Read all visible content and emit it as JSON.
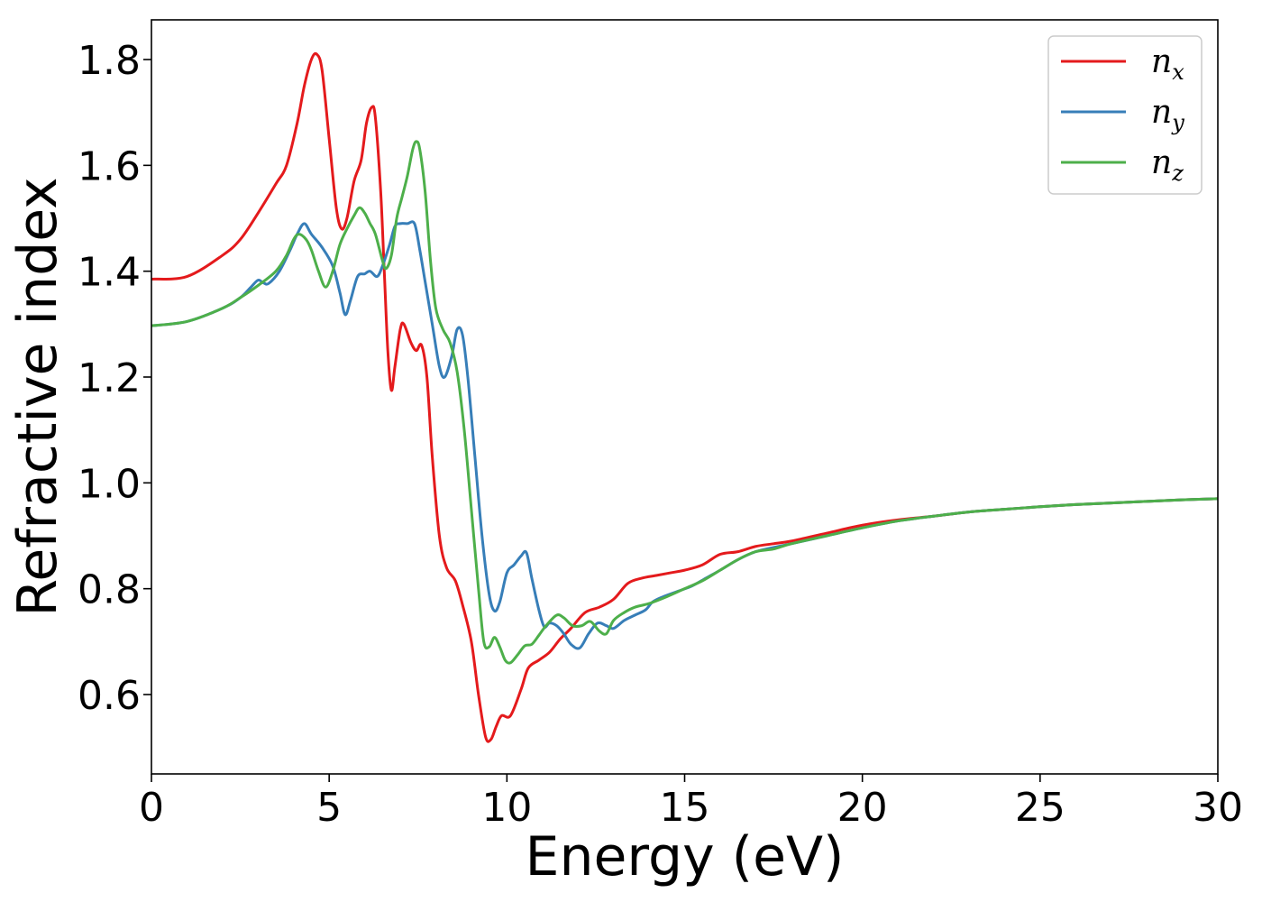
{
  "chart_data": {
    "type": "line",
    "xlabel": "Energy (eV)",
    "ylabel": "Refractive index",
    "xlim": [
      0,
      30
    ],
    "ylim": [
      0.45,
      1.875
    ],
    "xticks": [
      0,
      5,
      10,
      15,
      20,
      25,
      30
    ],
    "yticks": [
      0.6,
      0.8,
      1.0,
      1.2,
      1.4,
      1.6,
      1.8
    ],
    "xtick_labels": [
      "0",
      "5",
      "10",
      "15",
      "20",
      "25",
      "30"
    ],
    "ytick_labels": [
      "0.6",
      "0.8",
      "1.0",
      "1.2",
      "1.4",
      "1.6",
      "1.8"
    ],
    "grid": false,
    "legend_position": "top-right",
    "series": [
      {
        "name": "n",
        "subscript": "x",
        "color": "#e41a1c",
        "points": [
          [
            0,
            1.385
          ],
          [
            1,
            1.39
          ],
          [
            2,
            1.43
          ],
          [
            2.5,
            1.46
          ],
          [
            3,
            1.51
          ],
          [
            3.5,
            1.565
          ],
          [
            3.8,
            1.6
          ],
          [
            4.1,
            1.68
          ],
          [
            4.3,
            1.75
          ],
          [
            4.5,
            1.8
          ],
          [
            4.65,
            1.81
          ],
          [
            4.8,
            1.78
          ],
          [
            5.0,
            1.65
          ],
          [
            5.2,
            1.52
          ],
          [
            5.35,
            1.48
          ],
          [
            5.5,
            1.5
          ],
          [
            5.7,
            1.57
          ],
          [
            5.9,
            1.61
          ],
          [
            6.05,
            1.68
          ],
          [
            6.2,
            1.71
          ],
          [
            6.3,
            1.69
          ],
          [
            6.45,
            1.55
          ],
          [
            6.55,
            1.4
          ],
          [
            6.65,
            1.25
          ],
          [
            6.75,
            1.175
          ],
          [
            6.85,
            1.22
          ],
          [
            7.0,
            1.29
          ],
          [
            7.1,
            1.3
          ],
          [
            7.3,
            1.265
          ],
          [
            7.45,
            1.25
          ],
          [
            7.6,
            1.26
          ],
          [
            7.75,
            1.2
          ],
          [
            7.9,
            1.05
          ],
          [
            8.1,
            0.9
          ],
          [
            8.3,
            0.84
          ],
          [
            8.55,
            0.815
          ],
          [
            8.75,
            0.77
          ],
          [
            9.0,
            0.7
          ],
          [
            9.2,
            0.6
          ],
          [
            9.4,
            0.52
          ],
          [
            9.55,
            0.515
          ],
          [
            9.7,
            0.54
          ],
          [
            9.85,
            0.56
          ],
          [
            10.1,
            0.56
          ],
          [
            10.4,
            0.61
          ],
          [
            10.6,
            0.65
          ],
          [
            10.9,
            0.665
          ],
          [
            11.2,
            0.68
          ],
          [
            11.5,
            0.705
          ],
          [
            11.8,
            0.725
          ],
          [
            12.2,
            0.755
          ],
          [
            12.6,
            0.765
          ],
          [
            13.0,
            0.78
          ],
          [
            13.4,
            0.81
          ],
          [
            13.8,
            0.82
          ],
          [
            14.2,
            0.825
          ],
          [
            14.6,
            0.83
          ],
          [
            15.0,
            0.835
          ],
          [
            15.5,
            0.845
          ],
          [
            16.0,
            0.865
          ],
          [
            16.5,
            0.87
          ],
          [
            17.0,
            0.88
          ],
          [
            17.5,
            0.885
          ],
          [
            18.0,
            0.89
          ],
          [
            19.0,
            0.905
          ],
          [
            20.0,
            0.92
          ],
          [
            21.0,
            0.93
          ],
          [
            22.0,
            0.937
          ],
          [
            23.0,
            0.945
          ],
          [
            24.0,
            0.95
          ],
          [
            25.0,
            0.955
          ],
          [
            26.0,
            0.959
          ],
          [
            27.0,
            0.962
          ],
          [
            28.0,
            0.965
          ],
          [
            29.0,
            0.968
          ],
          [
            30.0,
            0.97
          ]
        ]
      },
      {
        "name": "n",
        "subscript": "y",
        "color": "#377eb8",
        "points": [
          [
            0,
            1.297
          ],
          [
            1,
            1.305
          ],
          [
            2,
            1.33
          ],
          [
            2.5,
            1.35
          ],
          [
            2.8,
            1.37
          ],
          [
            3.0,
            1.383
          ],
          [
            3.15,
            1.378
          ],
          [
            3.3,
            1.377
          ],
          [
            3.6,
            1.4
          ],
          [
            3.9,
            1.44
          ],
          [
            4.1,
            1.47
          ],
          [
            4.3,
            1.49
          ],
          [
            4.5,
            1.47
          ],
          [
            4.8,
            1.445
          ],
          [
            5.1,
            1.41
          ],
          [
            5.3,
            1.36
          ],
          [
            5.45,
            1.318
          ],
          [
            5.6,
            1.345
          ],
          [
            5.8,
            1.39
          ],
          [
            6.0,
            1.395
          ],
          [
            6.15,
            1.4
          ],
          [
            6.35,
            1.39
          ],
          [
            6.5,
            1.41
          ],
          [
            6.7,
            1.45
          ],
          [
            6.85,
            1.485
          ],
          [
            7.0,
            1.49
          ],
          [
            7.2,
            1.49
          ],
          [
            7.4,
            1.49
          ],
          [
            7.55,
            1.44
          ],
          [
            7.7,
            1.38
          ],
          [
            7.9,
            1.3
          ],
          [
            8.1,
            1.22
          ],
          [
            8.25,
            1.2
          ],
          [
            8.45,
            1.24
          ],
          [
            8.6,
            1.29
          ],
          [
            8.75,
            1.28
          ],
          [
            8.9,
            1.2
          ],
          [
            9.1,
            1.05
          ],
          [
            9.3,
            0.9
          ],
          [
            9.5,
            0.79
          ],
          [
            9.65,
            0.758
          ],
          [
            9.8,
            0.775
          ],
          [
            10.0,
            0.83
          ],
          [
            10.2,
            0.845
          ],
          [
            10.4,
            0.862
          ],
          [
            10.55,
            0.868
          ],
          [
            10.7,
            0.82
          ],
          [
            10.9,
            0.76
          ],
          [
            11.05,
            0.728
          ],
          [
            11.2,
            0.735
          ],
          [
            11.4,
            0.73
          ],
          [
            11.6,
            0.715
          ],
          [
            11.8,
            0.695
          ],
          [
            12.05,
            0.688
          ],
          [
            12.3,
            0.715
          ],
          [
            12.55,
            0.735
          ],
          [
            12.8,
            0.73
          ],
          [
            13.0,
            0.725
          ],
          [
            13.3,
            0.74
          ],
          [
            13.6,
            0.75
          ],
          [
            13.9,
            0.76
          ],
          [
            14.1,
            0.775
          ],
          [
            14.4,
            0.785
          ],
          [
            14.8,
            0.795
          ],
          [
            15.2,
            0.805
          ],
          [
            15.6,
            0.82
          ],
          [
            16.0,
            0.835
          ],
          [
            16.5,
            0.855
          ],
          [
            17.0,
            0.87
          ],
          [
            17.5,
            0.878
          ],
          [
            18.0,
            0.885
          ],
          [
            19.0,
            0.9
          ],
          [
            20.0,
            0.915
          ],
          [
            21.0,
            0.928
          ],
          [
            22.0,
            0.937
          ],
          [
            23.0,
            0.945
          ],
          [
            24.0,
            0.95
          ],
          [
            25.0,
            0.955
          ],
          [
            26.0,
            0.959
          ],
          [
            27.0,
            0.962
          ],
          [
            28.0,
            0.965
          ],
          [
            29.0,
            0.968
          ],
          [
            30.0,
            0.97
          ]
        ]
      },
      {
        "name": "n",
        "subscript": "z",
        "color": "#4daf4a",
        "points": [
          [
            0,
            1.297
          ],
          [
            1,
            1.305
          ],
          [
            2,
            1.33
          ],
          [
            2.5,
            1.35
          ],
          [
            3.0,
            1.373
          ],
          [
            3.5,
            1.4
          ],
          [
            3.8,
            1.43
          ],
          [
            4.0,
            1.46
          ],
          [
            4.15,
            1.47
          ],
          [
            4.35,
            1.46
          ],
          [
            4.5,
            1.44
          ],
          [
            4.7,
            1.4
          ],
          [
            4.9,
            1.37
          ],
          [
            5.1,
            1.4
          ],
          [
            5.3,
            1.45
          ],
          [
            5.5,
            1.48
          ],
          [
            5.7,
            1.505
          ],
          [
            5.85,
            1.52
          ],
          [
            6.0,
            1.51
          ],
          [
            6.15,
            1.49
          ],
          [
            6.3,
            1.47
          ],
          [
            6.5,
            1.42
          ],
          [
            6.6,
            1.405
          ],
          [
            6.75,
            1.43
          ],
          [
            6.9,
            1.5
          ],
          [
            7.05,
            1.54
          ],
          [
            7.2,
            1.58
          ],
          [
            7.35,
            1.63
          ],
          [
            7.45,
            1.645
          ],
          [
            7.55,
            1.63
          ],
          [
            7.7,
            1.55
          ],
          [
            7.85,
            1.42
          ],
          [
            8.0,
            1.33
          ],
          [
            8.2,
            1.29
          ],
          [
            8.4,
            1.265
          ],
          [
            8.6,
            1.21
          ],
          [
            8.8,
            1.1
          ],
          [
            9.0,
            0.95
          ],
          [
            9.2,
            0.8
          ],
          [
            9.35,
            0.7
          ],
          [
            9.5,
            0.69
          ],
          [
            9.65,
            0.708
          ],
          [
            9.8,
            0.69
          ],
          [
            9.95,
            0.665
          ],
          [
            10.1,
            0.66
          ],
          [
            10.3,
            0.675
          ],
          [
            10.5,
            0.692
          ],
          [
            10.7,
            0.695
          ],
          [
            10.9,
            0.712
          ],
          [
            11.1,
            0.73
          ],
          [
            11.4,
            0.75
          ],
          [
            11.6,
            0.745
          ],
          [
            11.85,
            0.73
          ],
          [
            12.1,
            0.73
          ],
          [
            12.35,
            0.738
          ],
          [
            12.6,
            0.72
          ],
          [
            12.8,
            0.715
          ],
          [
            13.0,
            0.74
          ],
          [
            13.3,
            0.755
          ],
          [
            13.6,
            0.765
          ],
          [
            14.0,
            0.772
          ],
          [
            14.5,
            0.785
          ],
          [
            15.0,
            0.8
          ],
          [
            15.5,
            0.815
          ],
          [
            16.0,
            0.835
          ],
          [
            16.5,
            0.855
          ],
          [
            17.0,
            0.87
          ],
          [
            17.5,
            0.875
          ],
          [
            18.0,
            0.885
          ],
          [
            19.0,
            0.9
          ],
          [
            20.0,
            0.915
          ],
          [
            21.0,
            0.928
          ],
          [
            22.0,
            0.937
          ],
          [
            23.0,
            0.945
          ],
          [
            24.0,
            0.95
          ],
          [
            25.0,
            0.955
          ],
          [
            26.0,
            0.959
          ],
          [
            27.0,
            0.962
          ],
          [
            28.0,
            0.965
          ],
          [
            29.0,
            0.968
          ],
          [
            30.0,
            0.97
          ]
        ]
      }
    ]
  }
}
